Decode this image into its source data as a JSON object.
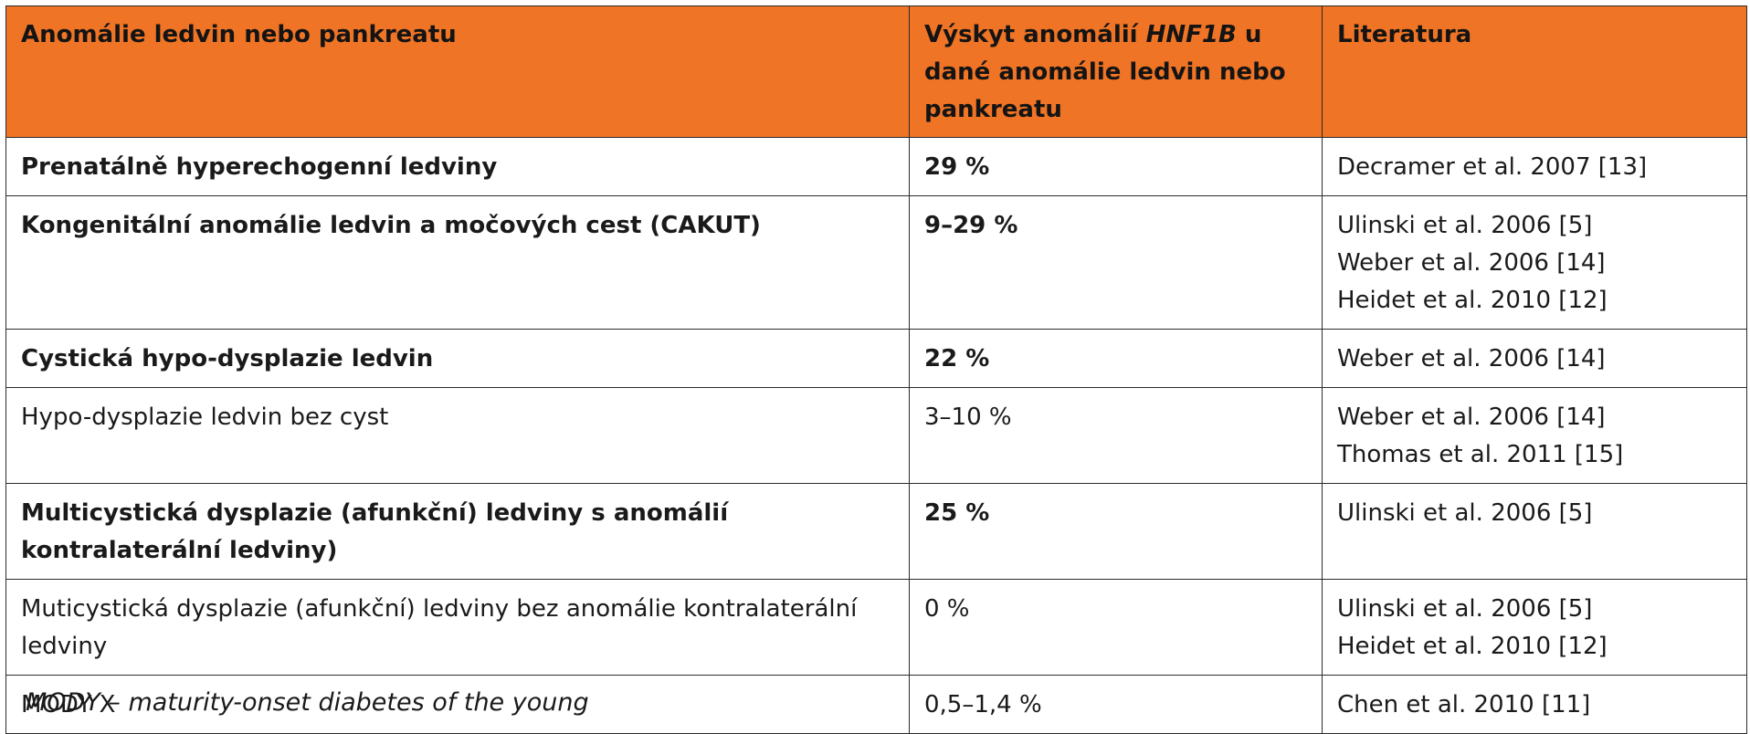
{
  "table": {
    "headers": {
      "col1": "Anomálie ledvin nebo pankreatu",
      "col2_pre": "Výskyt anomálií ",
      "col2_gene": "HNF1B",
      "col2_post": " u dané anomálie ledvin nebo pankreatu",
      "col3": "Literatura"
    },
    "rows": [
      {
        "anomaly": "Prenatálně hyperechogenní ledviny",
        "frequency": "29 %",
        "refs": [
          "Decramer et al. 2007 [13]"
        ],
        "bold": true
      },
      {
        "anomaly": "Kongenitální anomálie ledvin a močových cest (CAKUT)",
        "frequency": "9–29 %",
        "refs": [
          "Ulinski et al. 2006 [5]",
          "Weber et al. 2006 [14]",
          "Heidet et al. 2010 [12]"
        ],
        "bold": true
      },
      {
        "anomaly": "Cystická hypo-dysplazie ledvin",
        "frequency": "22 %",
        "refs": [
          "Weber et al. 2006 [14]"
        ],
        "bold": true
      },
      {
        "anomaly": "Hypo-dysplazie ledvin bez cyst",
        "frequency": "3–10 %",
        "refs": [
          "Weber et al. 2006 [14]",
          "Thomas et al. 2011 [15]"
        ],
        "bold": false
      },
      {
        "anomaly": "Multicystická dysplazie (afunkční) ledviny s anomálií kontralaterální ledviny)",
        "frequency": "25 %",
        "refs": [
          "Ulinski et al. 2006 [5]"
        ],
        "bold": true
      },
      {
        "anomaly": "Muticystická dysplazie (afunkční) ledviny bez anomálie kontralaterální ledviny",
        "frequency": "0 %",
        "refs": [
          "Ulinski et al. 2006 [5]",
          "Heidet et al. 2010 [12]"
        ],
        "bold": false
      },
      {
        "anomaly": "MODY X",
        "frequency": "0,5–1,4 %",
        "refs": [
          "Chen et al. 2010 [11]"
        ],
        "bold": false
      }
    ]
  },
  "footnote": "MODY – maturity-onset diabetes of the young",
  "colors": {
    "header_bg": "#f07425",
    "border": "#2b2b2b"
  }
}
